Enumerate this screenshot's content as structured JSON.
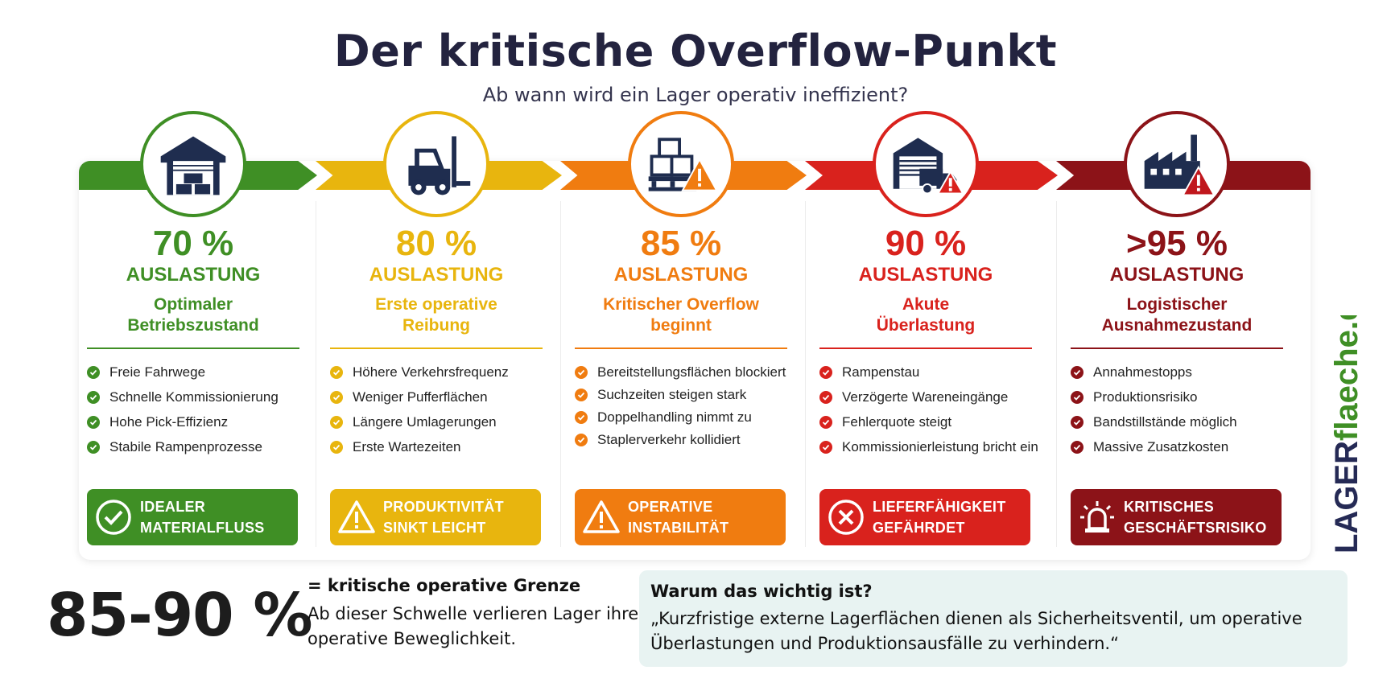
{
  "header": {
    "title": "Der kritische Overflow-Punkt",
    "subtitle": "Ab wann wird ein Lager operativ ineffizient?"
  },
  "stages": [
    {
      "percent": "70 %",
      "label": "AUSLASTUNG",
      "state_line1": "Optimaler",
      "state_line2": "Betriebszustand",
      "color": "#3f8f25",
      "icon": "warehouse-icon",
      "items": [
        "Freie Fahrwege",
        "Schnelle Kommissionierung",
        "Hohe Pick-Effizienz",
        "Stabile Rampenprozesse"
      ],
      "status_line1": "IDEALER",
      "status_line2": "MATERIALFLUSS",
      "status_icon": "check-circle-icon"
    },
    {
      "percent": "80 %",
      "label": "AUSLASTUNG",
      "state_line1": "Erste operative",
      "state_line2": "Reibung",
      "color": "#e8b50e",
      "icon": "forklift-icon",
      "items": [
        "Höhere Verkehrsfrequenz",
        "Weniger Pufferflächen",
        "Längere Umlagerungen",
        "Erste Wartezeiten"
      ],
      "status_line1": "PRODUKTIVITÄT",
      "status_line2": "SINKT LEICHT",
      "status_icon": "warning-triangle-icon"
    },
    {
      "percent": "85 %",
      "label": "AUSLASTUNG",
      "state_line1": "Kritischer Overflow",
      "state_line2": "beginnt",
      "color": "#f07c10",
      "icon": "pallet-boxes-warning-icon",
      "items": [
        "Bereitstellungsflächen blockiert",
        "Suchzeiten steigen stark",
        "Doppelhandling nimmt zu",
        "Staplerverkehr kollidiert"
      ],
      "status_line1": "OPERATIVE",
      "status_line2": "INSTABILITÄT",
      "status_icon": "warning-triangle-icon"
    },
    {
      "percent": "90 %",
      "label": "AUSLASTUNG",
      "state_line1": "Akute",
      "state_line2": "Überlastung",
      "color": "#d9221d",
      "icon": "loading-dock-truck-icon",
      "items": [
        "Rampenstau",
        "Verzögerte Wareneingänge",
        "Fehlerquote steigt",
        "Kommissionierleistung bricht ein"
      ],
      "status_line1": "LIEFERFÄHIGKEIT",
      "status_line2": "GEFÄHRDET",
      "status_icon": "x-circle-icon"
    },
    {
      "percent": ">95 %",
      "label": "AUSLASTUNG",
      "state_line1": "Logistischer",
      "state_line2": "Ausnahmezustand",
      "color": "#8c1318",
      "icon": "factory-warning-icon",
      "items": [
        "Annahmestopps",
        "Produktionsrisiko",
        "Bandstillstände möglich",
        "Massive Zusatzkosten"
      ],
      "status_line1": "KRITISCHES",
      "status_line2": "GESCHÄFTSRISIKO",
      "status_icon": "alarm-siren-icon"
    }
  ],
  "brand": {
    "part1": "LAGER",
    "part2": "flaeche.de",
    "color1": "#252a55",
    "color2": "#3f8f25"
  },
  "threshold": {
    "value": "85-90 %",
    "heading": "= kritische operative Grenze",
    "text": "Ab dieser Schwelle verlieren Lager ihre operative Beweglichkeit."
  },
  "why": {
    "heading": "Warum das wichtig ist?",
    "text": "„Kurzfristige externe Lagerflächen dienen als Sicherheitsventil, um operative Überlastungen und Produktionsausfälle zu verhindern.“"
  }
}
